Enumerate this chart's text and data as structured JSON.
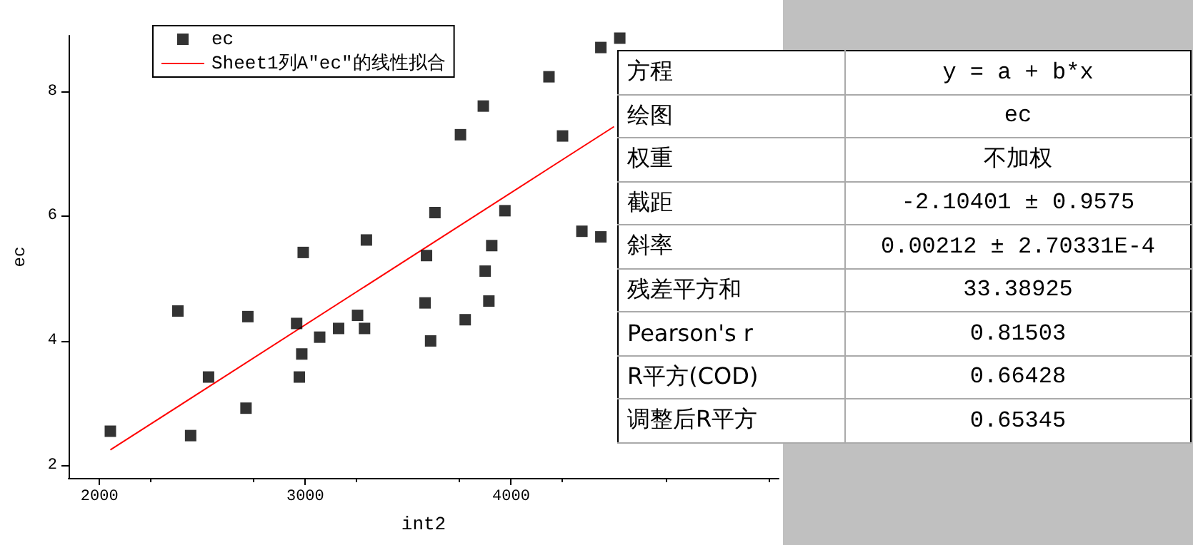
{
  "chart_data": {
    "type": "scatter",
    "xlabel": "int2",
    "ylabel": "ec",
    "xlim": [
      1850,
      5300
    ],
    "ylim": [
      1.8,
      8.9
    ],
    "xticks": [
      2000,
      3000,
      4000
    ],
    "yticks": [
      2,
      4,
      6,
      8
    ],
    "grid": false,
    "legend": "top left",
    "series": [
      {
        "name": "ec",
        "marker": "square",
        "color": "#000000",
        "x": [
          2053,
          2381,
          2443,
          2530,
          2712,
          2721,
          2958,
          2971,
          2983,
          2990,
          3070,
          3162,
          3254,
          3288,
          3297,
          3582,
          3589,
          3609,
          3630,
          3754,
          3777,
          3865,
          3874,
          3892,
          3906,
          3970,
          4184,
          4250,
          4344,
          4436,
          4436,
          4528
        ],
        "values": [
          2.55,
          4.48,
          2.48,
          3.42,
          2.92,
          4.39,
          4.28,
          3.42,
          3.79,
          5.42,
          4.06,
          4.2,
          4.41,
          4.2,
          5.62,
          4.61,
          5.37,
          4.0,
          6.06,
          7.31,
          4.34,
          7.77,
          5.12,
          4.64,
          5.53,
          6.09,
          8.24,
          7.29,
          5.76,
          5.67,
          8.71,
          8.86
        ]
      },
      {
        "name": "Sheet1列A\"ec\"的线性拟合",
        "type": "line",
        "color": "#ff0000",
        "line_style": "solid",
        "x": [
          2053,
          4500
        ],
        "values": [
          2.25,
          7.44
        ]
      }
    ],
    "annotations": [
      "方程",
      "y = a + b*x",
      "绘图",
      "ec",
      "权重",
      "不加权",
      "截距",
      "-2.10401 ± 0.9575",
      "斜率",
      "0.00212 ± 2.70331E-4",
      "残差平方和",
      "33.38925",
      "Pearson's r",
      "0.81503",
      "R平方(COD)",
      "0.66428",
      "调整后R平方",
      "0.65345"
    ]
  }
}
